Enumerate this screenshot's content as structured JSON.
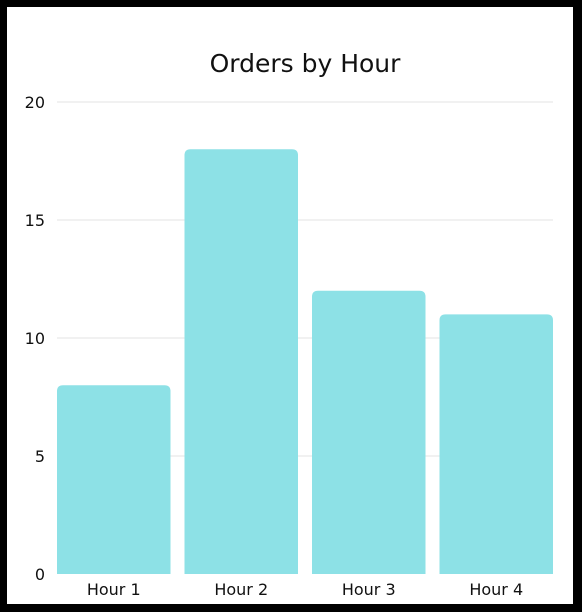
{
  "chart_data": {
    "type": "bar",
    "title": "Orders by Hour",
    "xlabel": "",
    "ylabel": "",
    "categories": [
      "Hour 1",
      "Hour 2",
      "Hour 3",
      "Hour 4"
    ],
    "values": [
      8,
      18,
      12,
      11
    ],
    "ylim": [
      0,
      20
    ],
    "yticks": [
      "0",
      "5",
      "10",
      "15",
      "20"
    ],
    "grid": true,
    "legend": "none",
    "bar_color": "#8de1e6"
  }
}
